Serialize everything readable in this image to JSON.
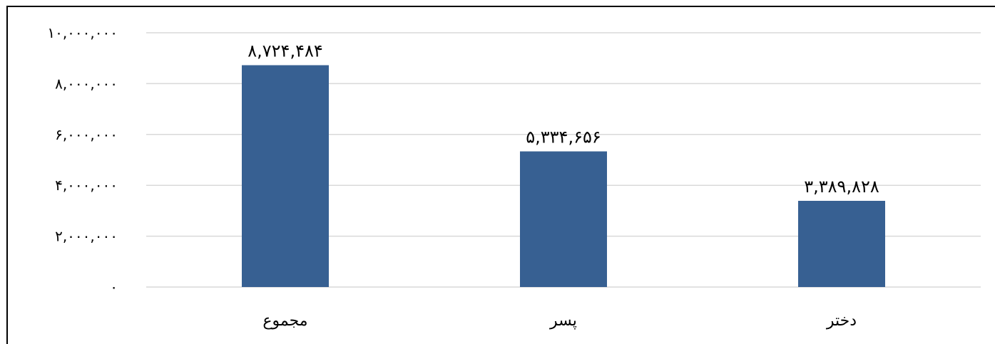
{
  "chart_data": {
    "type": "bar",
    "title": "",
    "xlabel": "",
    "ylabel": "",
    "categories": [
      "مجموع",
      "پسر",
      "دختر"
    ],
    "values": [
      8724484,
      5334656,
      3389828
    ],
    "value_labels": [
      "۸,۷۲۴,۴۸۴",
      "۵,۳۳۴,۶۵۶",
      "۳,۳۸۹,۸۲۸"
    ],
    "ylim": [
      0,
      10000000
    ],
    "yticks": [
      0,
      2000000,
      4000000,
      6000000,
      8000000,
      10000000
    ],
    "ytick_labels": [
      "۰",
      "۲,۰۰۰,۰۰۰",
      "۴,۰۰۰,۰۰۰",
      "۶,۰۰۰,۰۰۰",
      "۸,۰۰۰,۰۰۰",
      "۱۰,۰۰۰,۰۰۰"
    ],
    "grid": true,
    "legend": false,
    "colors": {
      "bar": "#376092",
      "grid": "#d9d9d9",
      "text": "#000000"
    }
  }
}
